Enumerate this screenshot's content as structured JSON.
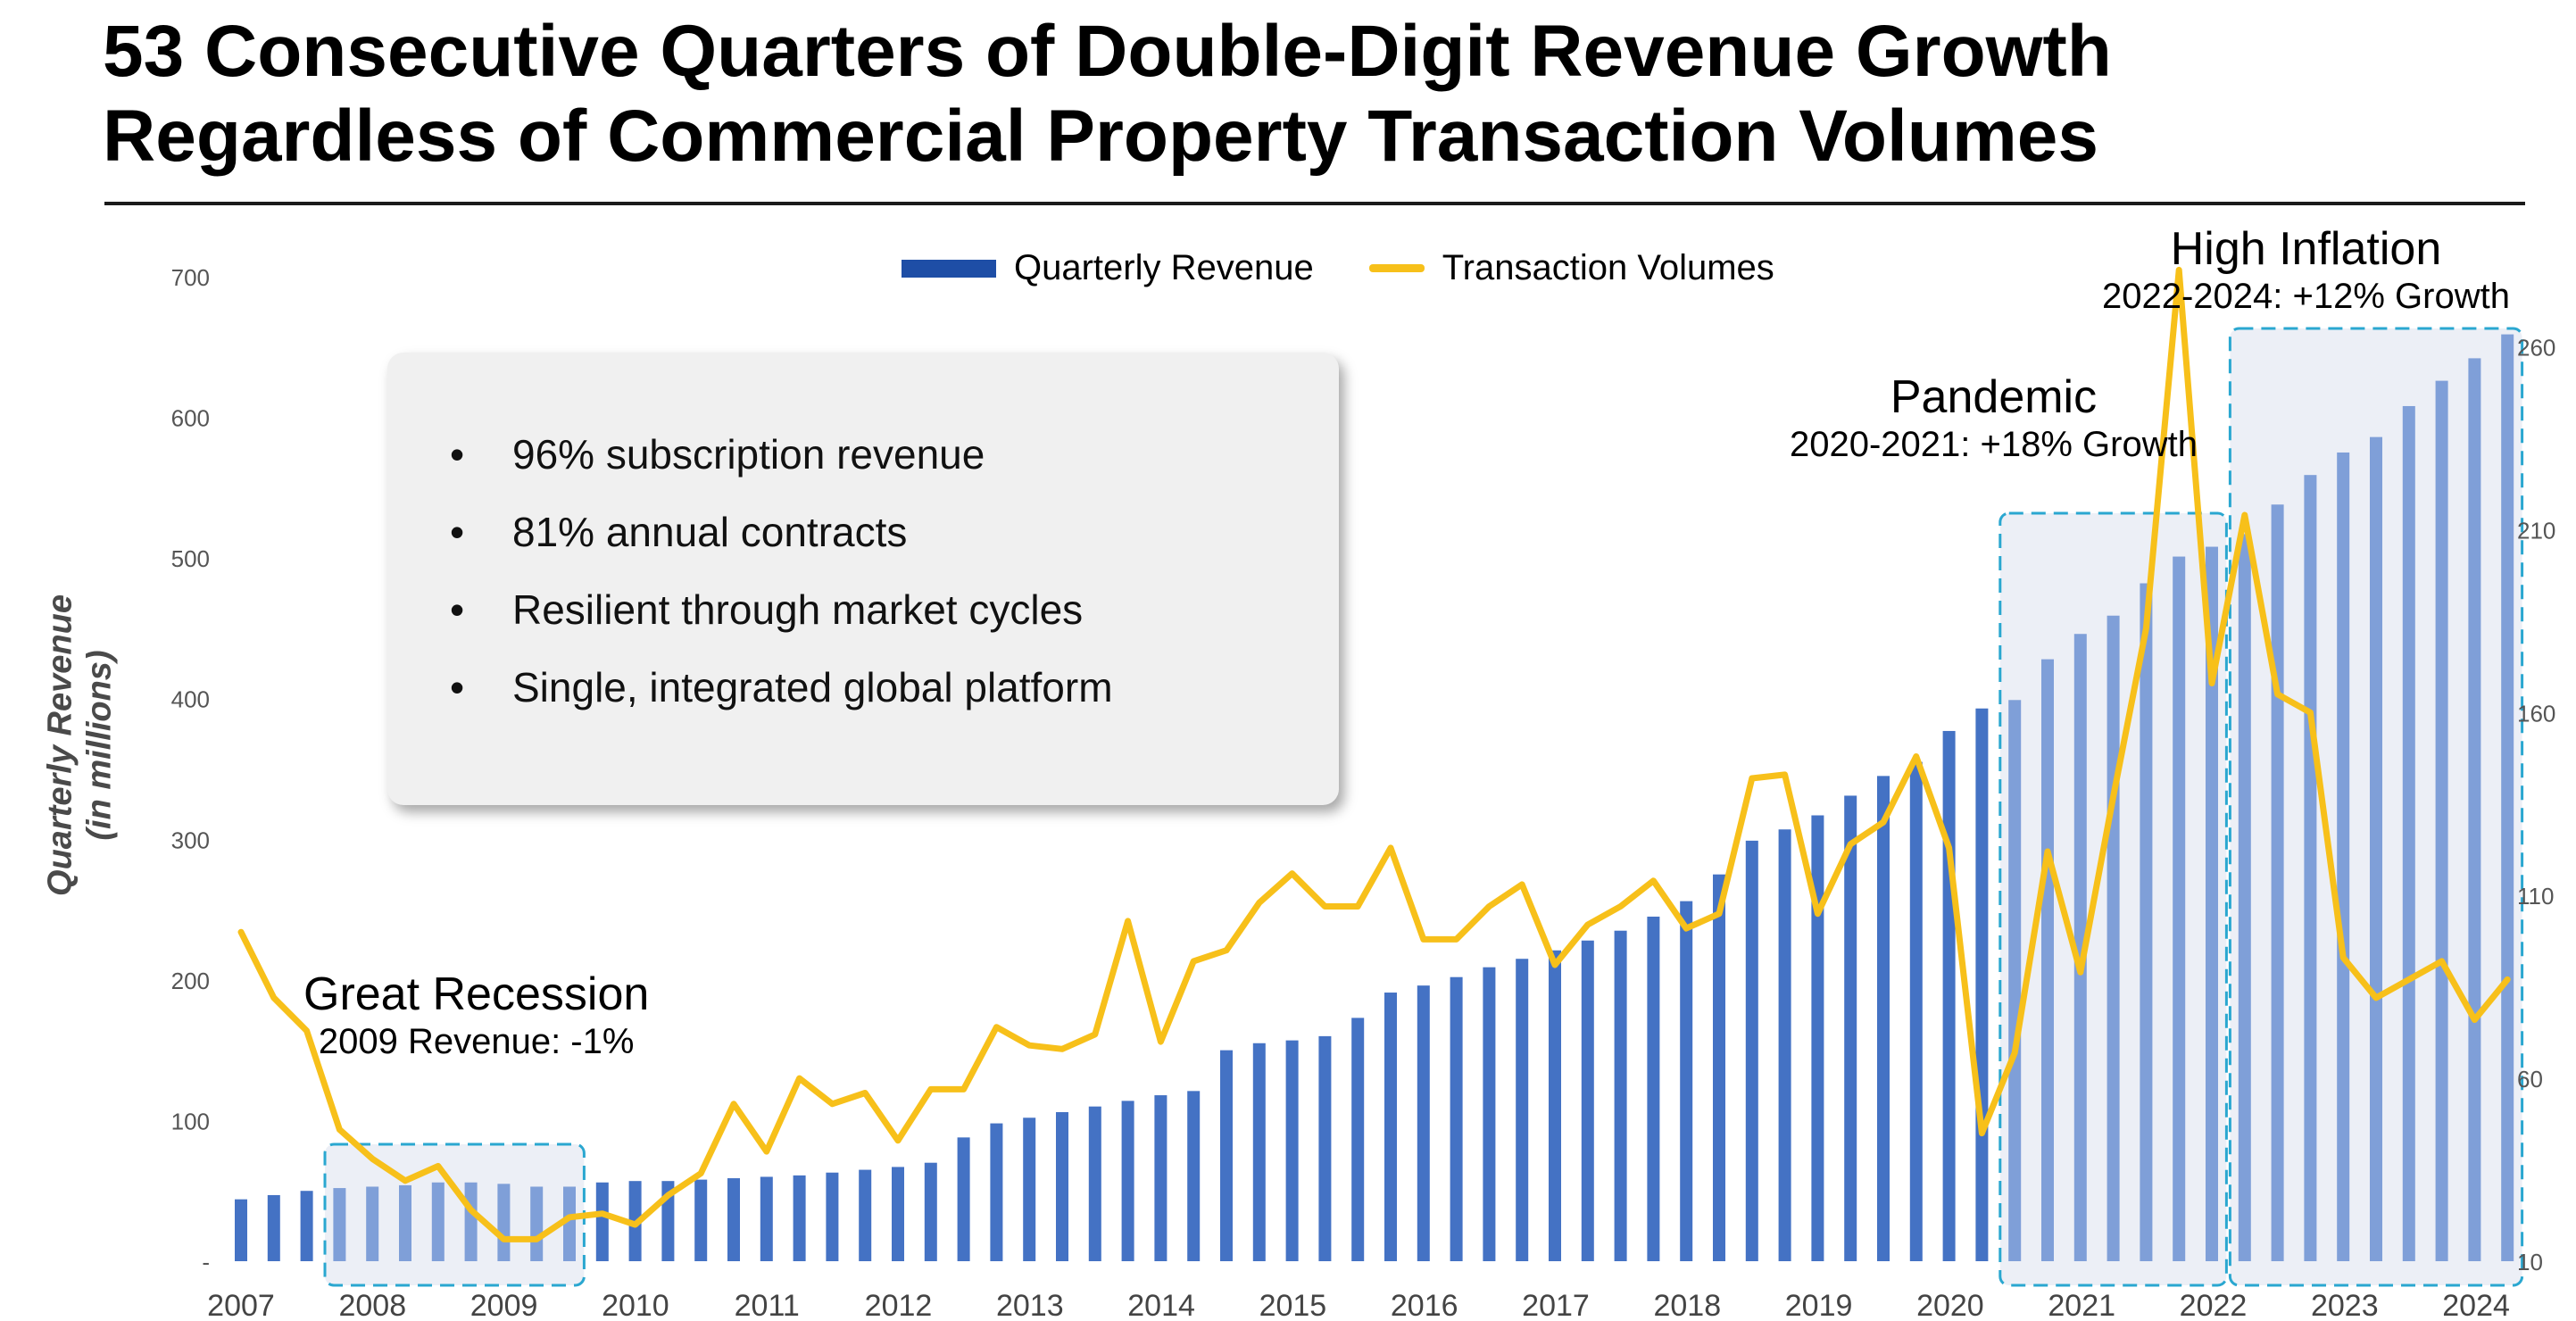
{
  "title_lines": [
    "53 Consecutive Quarters of Double-Digit Revenue Growth",
    "Regardless of Commercial Property Transaction Volumes"
  ],
  "info_box": {
    "bullets": [
      "96% subscription revenue",
      "81% annual contracts",
      "Resilient through market cycles",
      "Single, integrated global platform"
    ]
  },
  "annotations": {
    "recession": {
      "title": "Great Recession",
      "subtitle": "2009 Revenue: -1%"
    },
    "pandemic": {
      "title": "Pandemic",
      "subtitle": "2020-2021: +18% Growth"
    },
    "inflation": {
      "title": "High Inflation",
      "subtitle": "2022-2024: +12% Growth"
    }
  },
  "colors": {
    "bar": "#4472c4",
    "bar_highlight": "#7f9fd8",
    "line": "#f7c01a",
    "box_border": "#2aa7d0",
    "box_fill": "#e9ecf4"
  },
  "chart_data": {
    "type": "bar",
    "legend_position": "top-center",
    "grid": false,
    "xlabel": "",
    "ylabel": "Quarterly Revenue",
    "ylabel_sub": "(in millions)",
    "ylim": [
      0,
      700
    ],
    "y_ticks": [
      "-",
      "100",
      "200",
      "300",
      "400",
      "500",
      "600",
      "700"
    ],
    "y2lim": [
      10,
      285
    ],
    "y2_ticks": [
      "10",
      "60",
      "110",
      "160",
      "210",
      "260"
    ],
    "x_labels": [
      "2007",
      "2008",
      "2009",
      "2010",
      "2011",
      "2012",
      "2013",
      "2014",
      "2015",
      "2016",
      "2017",
      "2018",
      "2019",
      "2020",
      "2021",
      "2022",
      "2023",
      "2024"
    ],
    "series": [
      {
        "name": "Quarterly Revenue",
        "axis": "left",
        "values": [
          44,
          47,
          50,
          52,
          53,
          54,
          56,
          56,
          55,
          53,
          53,
          56,
          57,
          57,
          58,
          59,
          60,
          61,
          63,
          65,
          67,
          70,
          88,
          98,
          102,
          106,
          110,
          114,
          118,
          121,
          150,
          155,
          157,
          160,
          173,
          191,
          196,
          202,
          209,
          215,
          221,
          228,
          235,
          245,
          256,
          275,
          299,
          307,
          317,
          331,
          345,
          355,
          377,
          393,
          399,
          428,
          446,
          459,
          482,
          501,
          508,
          517,
          538,
          559,
          575,
          586,
          608,
          626,
          642,
          659
        ]
      },
      {
        "name": "Transaction Volumes",
        "axis": "right",
        "values": [
          100,
          82,
          73,
          46,
          38,
          32,
          36,
          24,
          16,
          16,
          22,
          23,
          20,
          28,
          34,
          53,
          40,
          60,
          53,
          56,
          43,
          57,
          57,
          74,
          69,
          68,
          72,
          103,
          70,
          92,
          95,
          108,
          116,
          107,
          107,
          123,
          98,
          98,
          107,
          113,
          91,
          102,
          107,
          114,
          101,
          105,
          142,
          143,
          105,
          124,
          130,
          148,
          123,
          45,
          67,
          122,
          89,
          137,
          183,
          281,
          168,
          214,
          165,
          160,
          93,
          82,
          87,
          92,
          76,
          87
        ]
      }
    ]
  }
}
